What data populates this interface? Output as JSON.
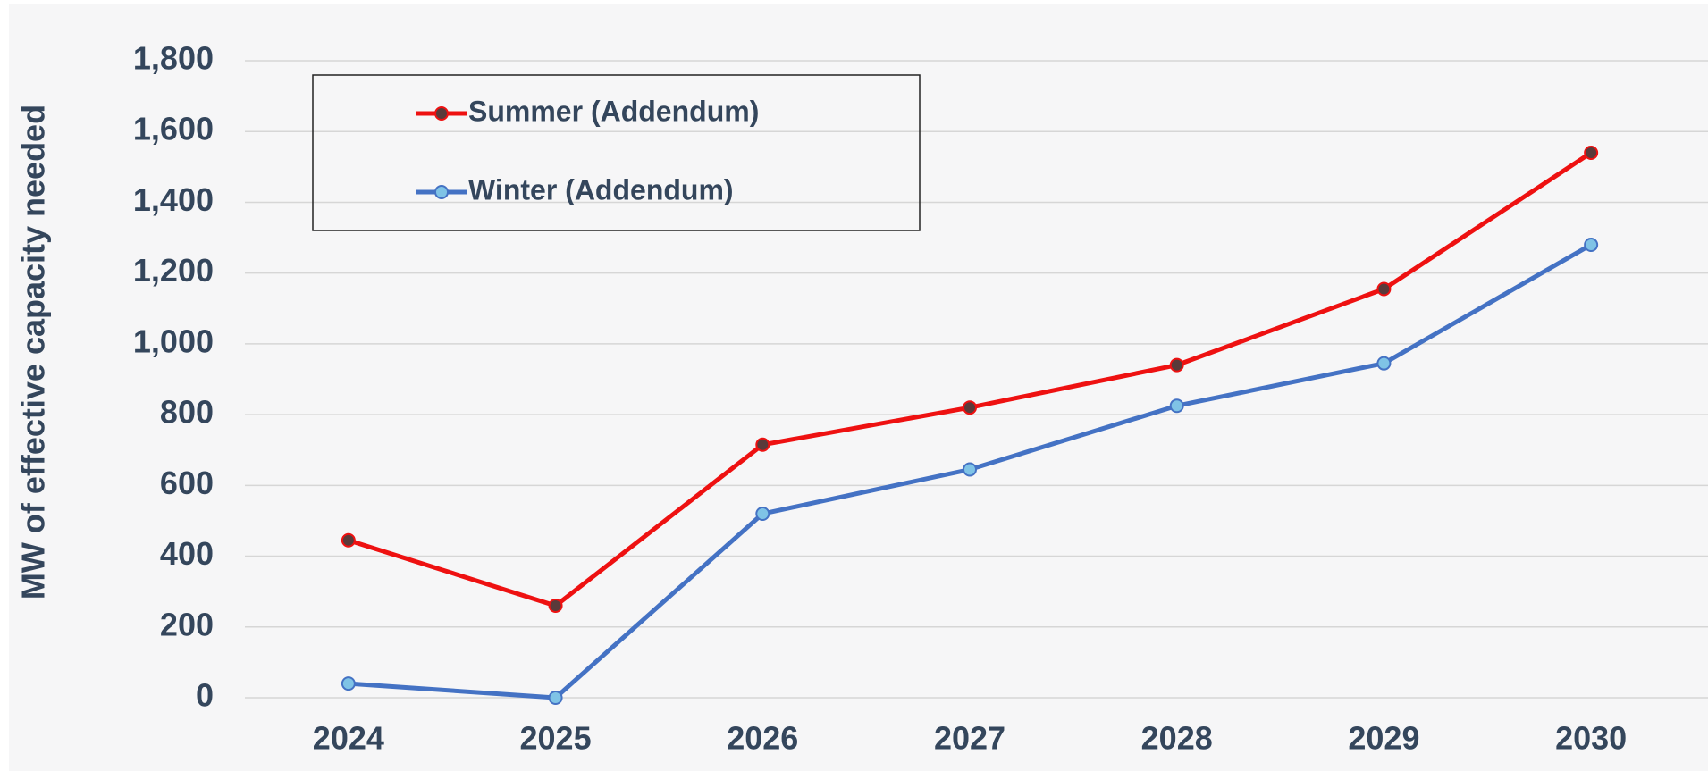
{
  "chart_data": {
    "type": "line",
    "y_label": "MW of effective capacity needed",
    "categories": [
      "2024",
      "2025",
      "2026",
      "2027",
      "2028",
      "2029",
      "2030"
    ],
    "series": [
      {
        "name": "Summer (Addendum)",
        "color": "#ee1111",
        "marker_color": "#5a3a3a",
        "values": [
          445,
          260,
          715,
          820,
          940,
          1155,
          1540
        ]
      },
      {
        "name": "Winter (Addendum)",
        "color": "#4472c4",
        "marker_color": "#7fc3e6",
        "values": [
          40,
          0,
          520,
          645,
          825,
          945,
          1280
        ]
      }
    ],
    "ylim": [
      0,
      1800
    ],
    "yticks": [
      0,
      200,
      400,
      600,
      800,
      {
        "value": 1000,
        "label": "1,000"
      },
      {
        "value": 1200,
        "label": "1,200"
      },
      {
        "value": 1400,
        "label": "1,400"
      },
      {
        "value": 1600,
        "label": "1,600"
      },
      {
        "value": 1800,
        "label": "1,800"
      }
    ],
    "grid": true,
    "legend": "upper left"
  }
}
